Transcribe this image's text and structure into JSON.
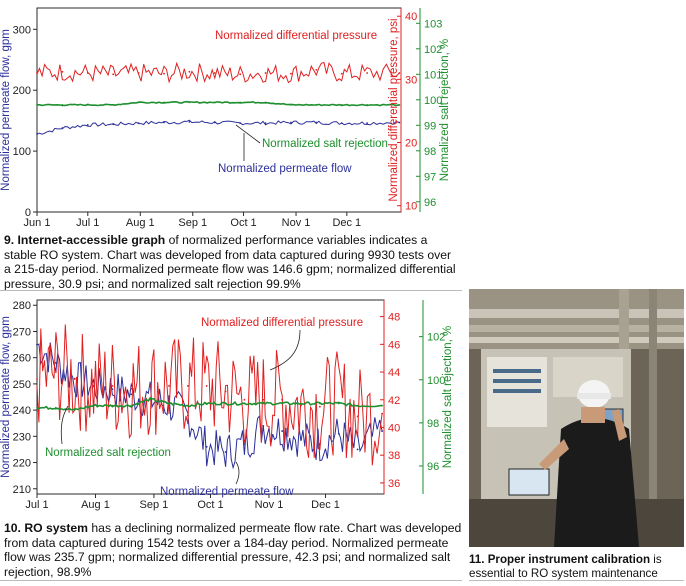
{
  "colors": {
    "flow": "#2b2f9a",
    "dp": "#e02020",
    "rejection": "#1e8f2e",
    "axis": "#2a2a2a"
  },
  "chart_data": [
    {
      "type": "line",
      "x_ticks": [
        "Jun 1",
        "Jul 1",
        "Aug 1",
        "Sep 1",
        "Oct 1",
        "Nov 1",
        "Dec 1"
      ],
      "axes": [
        {
          "label": "Normalized permeate flow, gpm",
          "side": "left",
          "ticks": [
            0,
            100,
            200,
            300
          ],
          "range": [
            0,
            335
          ],
          "color": "#2b2f9a"
        },
        {
          "label": "Normalized differential pressure, psi",
          "side": "right-inner",
          "ticks": [
            10,
            20,
            30,
            40
          ],
          "range": [
            9,
            41.3
          ],
          "color": "#e02020"
        },
        {
          "label": "Normalized salt rejection, %",
          "side": "right-outer",
          "ticks": [
            96,
            97,
            98,
            99,
            100,
            101,
            102,
            103
          ],
          "range": [
            95.6,
            103.6
          ],
          "color": "#1e8f2e"
        }
      ],
      "annotations": [
        "Normalized differential pressure",
        "Normalized salt rejection",
        "Normalized permeate flow"
      ],
      "series": [
        {
          "name": "Normalized permeate flow",
          "axis": 0,
          "x": [
            0,
            15,
            30,
            45,
            60,
            75,
            90,
            105,
            120,
            135,
            150,
            165,
            180,
            195,
            214
          ],
          "y": [
            128,
            138,
            143,
            144,
            146,
            147,
            148,
            147,
            146,
            146,
            147,
            147,
            146,
            146,
            147
          ]
        },
        {
          "name": "Normalized differential pressure",
          "axis": 1,
          "x": [
            0,
            15,
            30,
            45,
            60,
            75,
            90,
            105,
            120,
            135,
            150,
            165,
            180,
            195,
            214
          ],
          "y": [
            31,
            31.2,
            31,
            30.8,
            31,
            30.9,
            31.2,
            31,
            30.8,
            31,
            30.9,
            31.5,
            30.9,
            31,
            31
          ]
        },
        {
          "name": "Normalized salt rejection",
          "axis": 2,
          "x": [
            0,
            15,
            30,
            45,
            60,
            75,
            90,
            105,
            120,
            135,
            150,
            165,
            180,
            195,
            214
          ],
          "y": [
            99.8,
            99.8,
            99.8,
            99.8,
            99.9,
            99.9,
            99.9,
            99.9,
            99.9,
            99.9,
            99.8,
            99.8,
            99.8,
            99.8,
            99.8
          ]
        }
      ]
    },
    {
      "type": "line",
      "x_ticks": [
        "Jul 1",
        "Aug 1",
        "Sep 1",
        "Oct 1",
        "Nov 1",
        "Dec 1"
      ],
      "axes": [
        {
          "label": "Normalized permeate flow, gpm",
          "side": "left",
          "ticks": [
            210,
            220,
            230,
            240,
            250,
            260,
            270,
            280
          ],
          "range": [
            208,
            282
          ],
          "color": "#2b2f9a"
        },
        {
          "label": "",
          "side": "right-inner",
          "ticks": [
            36,
            38,
            40,
            42,
            44,
            46,
            48
          ],
          "range": [
            35.2,
            49.2
          ],
          "color": "#e02020"
        },
        {
          "label": "Normalized salt rejection, %",
          "side": "right-outer",
          "ticks": [
            96,
            98,
            100,
            102
          ],
          "range": [
            94.7,
            103.7
          ],
          "color": "#1e8f2e"
        }
      ],
      "annotations": [
        "Normalized differential pressure",
        "Normalized salt rejection",
        "Normalized permeate flow"
      ],
      "series": [
        {
          "name": "Normalized permeate flow",
          "axis": 0,
          "x": [
            0,
            10,
            20,
            30,
            40,
            50,
            60,
            70,
            80,
            90,
            100,
            110,
            120,
            130,
            140,
            150,
            160,
            170,
            183
          ],
          "y": [
            265,
            258,
            252,
            249,
            248,
            246,
            244,
            242,
            238,
            226,
            224,
            227,
            234,
            232,
            229,
            227,
            231,
            225,
            232
          ]
        },
        {
          "name": "Normalized differential pressure",
          "axis": 1,
          "x": [
            0,
            10,
            20,
            30,
            40,
            50,
            60,
            70,
            80,
            90,
            100,
            110,
            120,
            130,
            140,
            150,
            160,
            170,
            183
          ],
          "y": [
            43.5,
            44,
            43.5,
            43,
            43,
            42.8,
            43,
            43,
            43,
            43,
            42.6,
            42,
            42,
            42,
            41.6,
            41.5,
            41.8,
            40.8,
            41
          ]
        },
        {
          "name": "Normalized salt rejection",
          "axis": 2,
          "x": [
            0,
            10,
            20,
            30,
            40,
            50,
            60,
            70,
            80,
            90,
            100,
            110,
            120,
            130,
            140,
            150,
            160,
            170,
            183
          ],
          "y": [
            98.7,
            98.7,
            98.6,
            98.8,
            98.8,
            98.8,
            99.1,
            98.9,
            98.8,
            98.9,
            98.9,
            98.9,
            98.9,
            98.9,
            98.9,
            98.9,
            98.9,
            98.8,
            98.8
          ]
        }
      ]
    }
  ],
  "captions": {
    "fig9_bold": "9. Internet-accessible graph",
    "fig9_text": " of normalized performance variables indicates a stable RO system. Chart was developed from data captured during 9930 tests over a 215-day period. Normalized permeate flow was 146.6 gpm; normalized differential pressure, 30.9 psi; and normalized salt rejection 99.9%",
    "fig10_bold": "10. RO system",
    "fig10_text": " has a declining normalized permeate flow rate. Chart was developed from data captured during 1542 tests over a 184-day period. Normalized permeate flow was 235.7 gpm; normalized differential pressure, 42.3 psi; and normalized salt rejection, 98.9%",
    "fig11_bold": "11. Proper instrument calibration",
    "fig11_text": " is essential to RO system maintenance"
  }
}
